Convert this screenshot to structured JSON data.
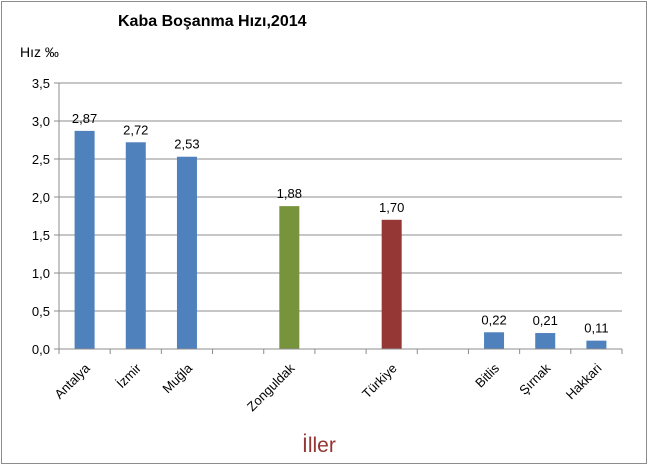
{
  "chart_data": {
    "type": "bar",
    "title": "Kaba Boşanma Hızı,2014",
    "ylabel": "Hız ‰",
    "xlabel": "İller",
    "ylim": [
      0,
      3.5
    ],
    "yticks": [
      "0,0",
      "0,5",
      "1,0",
      "1,5",
      "2,0",
      "2,5",
      "3,0",
      "3,5"
    ],
    "grid": true,
    "legend": "none",
    "categories": [
      "Antalya",
      "İzmir",
      "Muğla",
      "Zonguldak",
      "Türkiye",
      "Bitlis",
      "Şırnak",
      "Hakkari"
    ],
    "values": [
      2.87,
      2.72,
      2.53,
      1.88,
      1.7,
      0.22,
      0.21,
      0.11
    ],
    "value_labels": [
      "2,87",
      "2,72",
      "2,53",
      "1,88",
      "1,70",
      "0,22",
      "0,21",
      "0,11"
    ],
    "slots": [
      0,
      1,
      2,
      4,
      6,
      8,
      9,
      10
    ],
    "colors": [
      "#4f81bd",
      "#4f81bd",
      "#4f81bd",
      "#77933c",
      "#953735",
      "#4f81bd",
      "#4f81bd",
      "#4f81bd"
    ]
  }
}
